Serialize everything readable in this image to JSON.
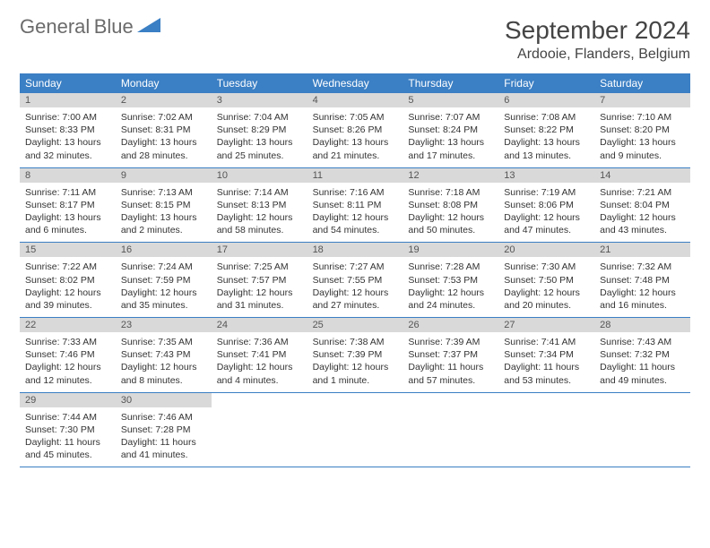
{
  "logo": {
    "text1": "General",
    "text2": "Blue"
  },
  "title": "September 2024",
  "location": "Ardooie, Flanders, Belgium",
  "colors": {
    "header_bg": "#3b7fc4",
    "daybar_bg": "#d9d9d9",
    "text": "#333333",
    "logo_gray": "#6b6b6b",
    "logo_blue": "#3b7fc4"
  },
  "typography": {
    "title_size": 28,
    "location_size": 16,
    "dayheader_size": 12,
    "daynum_size": 11,
    "body_size": 10.5
  },
  "day_names": [
    "Sunday",
    "Monday",
    "Tuesday",
    "Wednesday",
    "Thursday",
    "Friday",
    "Saturday"
  ],
  "weeks": [
    [
      {
        "n": "1",
        "sunrise": "Sunrise: 7:00 AM",
        "sunset": "Sunset: 8:33 PM",
        "day1": "Daylight: 13 hours",
        "day2": "and 32 minutes."
      },
      {
        "n": "2",
        "sunrise": "Sunrise: 7:02 AM",
        "sunset": "Sunset: 8:31 PM",
        "day1": "Daylight: 13 hours",
        "day2": "and 28 minutes."
      },
      {
        "n": "3",
        "sunrise": "Sunrise: 7:04 AM",
        "sunset": "Sunset: 8:29 PM",
        "day1": "Daylight: 13 hours",
        "day2": "and 25 minutes."
      },
      {
        "n": "4",
        "sunrise": "Sunrise: 7:05 AM",
        "sunset": "Sunset: 8:26 PM",
        "day1": "Daylight: 13 hours",
        "day2": "and 21 minutes."
      },
      {
        "n": "5",
        "sunrise": "Sunrise: 7:07 AM",
        "sunset": "Sunset: 8:24 PM",
        "day1": "Daylight: 13 hours",
        "day2": "and 17 minutes."
      },
      {
        "n": "6",
        "sunrise": "Sunrise: 7:08 AM",
        "sunset": "Sunset: 8:22 PM",
        "day1": "Daylight: 13 hours",
        "day2": "and 13 minutes."
      },
      {
        "n": "7",
        "sunrise": "Sunrise: 7:10 AM",
        "sunset": "Sunset: 8:20 PM",
        "day1": "Daylight: 13 hours",
        "day2": "and 9 minutes."
      }
    ],
    [
      {
        "n": "8",
        "sunrise": "Sunrise: 7:11 AM",
        "sunset": "Sunset: 8:17 PM",
        "day1": "Daylight: 13 hours",
        "day2": "and 6 minutes."
      },
      {
        "n": "9",
        "sunrise": "Sunrise: 7:13 AM",
        "sunset": "Sunset: 8:15 PM",
        "day1": "Daylight: 13 hours",
        "day2": "and 2 minutes."
      },
      {
        "n": "10",
        "sunrise": "Sunrise: 7:14 AM",
        "sunset": "Sunset: 8:13 PM",
        "day1": "Daylight: 12 hours",
        "day2": "and 58 minutes."
      },
      {
        "n": "11",
        "sunrise": "Sunrise: 7:16 AM",
        "sunset": "Sunset: 8:11 PM",
        "day1": "Daylight: 12 hours",
        "day2": "and 54 minutes."
      },
      {
        "n": "12",
        "sunrise": "Sunrise: 7:18 AM",
        "sunset": "Sunset: 8:08 PM",
        "day1": "Daylight: 12 hours",
        "day2": "and 50 minutes."
      },
      {
        "n": "13",
        "sunrise": "Sunrise: 7:19 AM",
        "sunset": "Sunset: 8:06 PM",
        "day1": "Daylight: 12 hours",
        "day2": "and 47 minutes."
      },
      {
        "n": "14",
        "sunrise": "Sunrise: 7:21 AM",
        "sunset": "Sunset: 8:04 PM",
        "day1": "Daylight: 12 hours",
        "day2": "and 43 minutes."
      }
    ],
    [
      {
        "n": "15",
        "sunrise": "Sunrise: 7:22 AM",
        "sunset": "Sunset: 8:02 PM",
        "day1": "Daylight: 12 hours",
        "day2": "and 39 minutes."
      },
      {
        "n": "16",
        "sunrise": "Sunrise: 7:24 AM",
        "sunset": "Sunset: 7:59 PM",
        "day1": "Daylight: 12 hours",
        "day2": "and 35 minutes."
      },
      {
        "n": "17",
        "sunrise": "Sunrise: 7:25 AM",
        "sunset": "Sunset: 7:57 PM",
        "day1": "Daylight: 12 hours",
        "day2": "and 31 minutes."
      },
      {
        "n": "18",
        "sunrise": "Sunrise: 7:27 AM",
        "sunset": "Sunset: 7:55 PM",
        "day1": "Daylight: 12 hours",
        "day2": "and 27 minutes."
      },
      {
        "n": "19",
        "sunrise": "Sunrise: 7:28 AM",
        "sunset": "Sunset: 7:53 PM",
        "day1": "Daylight: 12 hours",
        "day2": "and 24 minutes."
      },
      {
        "n": "20",
        "sunrise": "Sunrise: 7:30 AM",
        "sunset": "Sunset: 7:50 PM",
        "day1": "Daylight: 12 hours",
        "day2": "and 20 minutes."
      },
      {
        "n": "21",
        "sunrise": "Sunrise: 7:32 AM",
        "sunset": "Sunset: 7:48 PM",
        "day1": "Daylight: 12 hours",
        "day2": "and 16 minutes."
      }
    ],
    [
      {
        "n": "22",
        "sunrise": "Sunrise: 7:33 AM",
        "sunset": "Sunset: 7:46 PM",
        "day1": "Daylight: 12 hours",
        "day2": "and 12 minutes."
      },
      {
        "n": "23",
        "sunrise": "Sunrise: 7:35 AM",
        "sunset": "Sunset: 7:43 PM",
        "day1": "Daylight: 12 hours",
        "day2": "and 8 minutes."
      },
      {
        "n": "24",
        "sunrise": "Sunrise: 7:36 AM",
        "sunset": "Sunset: 7:41 PM",
        "day1": "Daylight: 12 hours",
        "day2": "and 4 minutes."
      },
      {
        "n": "25",
        "sunrise": "Sunrise: 7:38 AM",
        "sunset": "Sunset: 7:39 PM",
        "day1": "Daylight: 12 hours",
        "day2": "and 1 minute."
      },
      {
        "n": "26",
        "sunrise": "Sunrise: 7:39 AM",
        "sunset": "Sunset: 7:37 PM",
        "day1": "Daylight: 11 hours",
        "day2": "and 57 minutes."
      },
      {
        "n": "27",
        "sunrise": "Sunrise: 7:41 AM",
        "sunset": "Sunset: 7:34 PM",
        "day1": "Daylight: 11 hours",
        "day2": "and 53 minutes."
      },
      {
        "n": "28",
        "sunrise": "Sunrise: 7:43 AM",
        "sunset": "Sunset: 7:32 PM",
        "day1": "Daylight: 11 hours",
        "day2": "and 49 minutes."
      }
    ],
    [
      {
        "n": "29",
        "sunrise": "Sunrise: 7:44 AM",
        "sunset": "Sunset: 7:30 PM",
        "day1": "Daylight: 11 hours",
        "day2": "and 45 minutes."
      },
      {
        "n": "30",
        "sunrise": "Sunrise: 7:46 AM",
        "sunset": "Sunset: 7:28 PM",
        "day1": "Daylight: 11 hours",
        "day2": "and 41 minutes."
      },
      null,
      null,
      null,
      null,
      null
    ]
  ]
}
